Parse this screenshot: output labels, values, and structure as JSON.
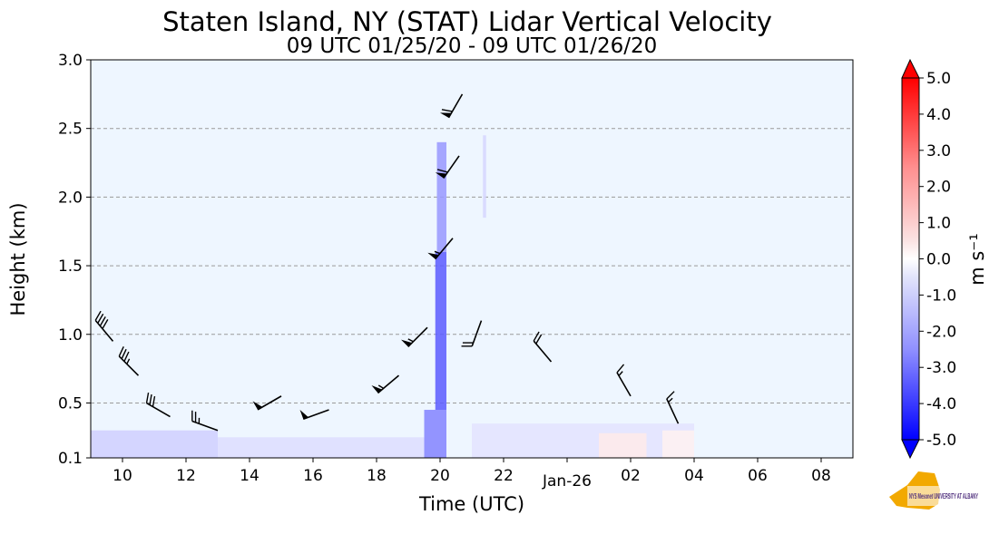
{
  "chart_data": {
    "type": "heatmap",
    "title": "Staten Island, NY (STAT) Lidar Vertical Velocity",
    "subtitle": "09 UTC 01/25/20 - 09 UTC 01/26/20",
    "xlabel": "Time (UTC)",
    "ylabel": "Height (km)",
    "x_range_hours": [
      9,
      33
    ],
    "x_ticks": [
      {
        "hour": 10,
        "label": "10"
      },
      {
        "hour": 12,
        "label": "12"
      },
      {
        "hour": 14,
        "label": "14"
      },
      {
        "hour": 16,
        "label": "16"
      },
      {
        "hour": 18,
        "label": "18"
      },
      {
        "hour": 20,
        "label": "20"
      },
      {
        "hour": 22,
        "label": "22"
      },
      {
        "hour": 24,
        "label": "Jan-26"
      },
      {
        "hour": 26,
        "label": "02"
      },
      {
        "hour": 28,
        "label": "04"
      },
      {
        "hour": 30,
        "label": "06"
      },
      {
        "hour": 32,
        "label": "08"
      }
    ],
    "ylim": [
      0.1,
      3.0
    ],
    "y_ticks": [
      0.1,
      0.5,
      1.0,
      1.5,
      2.0,
      2.5,
      3.0
    ],
    "y_tick_labels": [
      "0.1",
      "0.5",
      "1.0",
      "1.5",
      "2.0",
      "2.5",
      "3.0"
    ],
    "grid_y": [
      0.5,
      1.0,
      1.5,
      2.0,
      2.5
    ],
    "colorbar": {
      "label": "m s⁻¹",
      "min": -5.0,
      "max": 5.0,
      "ticks": [
        "5.0",
        "4.0",
        "3.0",
        "2.0",
        "1.0",
        "0.0",
        "-1.0",
        "-2.0",
        "-3.0",
        "-4.0",
        "-5.0"
      ]
    },
    "velocity_cells": [
      {
        "h0": 19.5,
        "h1": 20.2,
        "z0": 0.1,
        "z1": 0.45,
        "w": -1.8
      },
      {
        "h0": 19.85,
        "h1": 20.2,
        "z0": 0.45,
        "z1": 1.6,
        "w": -2.4
      },
      {
        "h0": 19.9,
        "h1": 20.2,
        "z0": 1.6,
        "z1": 2.4,
        "w": -1.5
      },
      {
        "h0": 21.35,
        "h1": 21.45,
        "z0": 1.85,
        "z1": 2.45,
        "w": -0.6
      },
      {
        "h0": 9.0,
        "h1": 13.0,
        "z0": 0.1,
        "z1": 0.3,
        "w": -0.7
      },
      {
        "h0": 13.0,
        "h1": 19.5,
        "z0": 0.1,
        "z1": 0.25,
        "w": -0.5
      },
      {
        "h0": 21.0,
        "h1": 28.0,
        "z0": 0.1,
        "z1": 0.35,
        "w": -0.4
      },
      {
        "h0": 25.0,
        "h1": 26.5,
        "z0": 0.1,
        "z1": 0.28,
        "w": 0.3
      },
      {
        "h0": 27.0,
        "h1": 28.0,
        "z0": 0.1,
        "z1": 0.3,
        "w": 0.2
      }
    ],
    "wind_barbs": [
      {
        "hour": 9.7,
        "z": 0.95,
        "dir": 320,
        "kt": 40
      },
      {
        "hour": 10.5,
        "z": 0.7,
        "dir": 315,
        "kt": 35
      },
      {
        "hour": 11.5,
        "z": 0.4,
        "dir": 300,
        "kt": 30
      },
      {
        "hour": 13.0,
        "z": 0.3,
        "dir": 290,
        "kt": 25
      },
      {
        "hour": 15.0,
        "z": 0.55,
        "dir": 240,
        "kt": 50
      },
      {
        "hour": 16.5,
        "z": 0.45,
        "dir": 250,
        "kt": 50
      },
      {
        "hour": 18.7,
        "z": 0.7,
        "dir": 230,
        "kt": 55
      },
      {
        "hour": 19.6,
        "z": 1.05,
        "dir": 225,
        "kt": 55
      },
      {
        "hour": 20.4,
        "z": 1.7,
        "dir": 220,
        "kt": 55
      },
      {
        "hour": 20.6,
        "z": 2.3,
        "dir": 215,
        "kt": 60
      },
      {
        "hour": 20.7,
        "z": 2.75,
        "dir": 210,
        "kt": 60
      },
      {
        "hour": 21.3,
        "z": 1.1,
        "dir": 200,
        "kt": 20
      },
      {
        "hour": 23.5,
        "z": 0.8,
        "dir": 320,
        "kt": 20
      },
      {
        "hour": 26.0,
        "z": 0.55,
        "dir": 330,
        "kt": 15
      },
      {
        "hour": 27.5,
        "z": 0.35,
        "dir": 335,
        "kt": 15
      }
    ],
    "logo_text": "NYS Mesonet UNIVERSITY AT ALBANY"
  }
}
